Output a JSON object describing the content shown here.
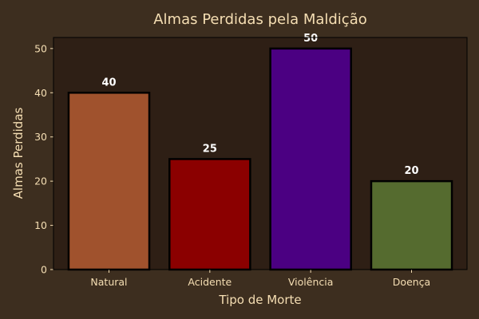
{
  "chart_data": {
    "type": "bar",
    "title": "Almas Perdidas pela Maldição",
    "xlabel": "Tipo de Morte",
    "ylabel": "Almas Perdidas",
    "categories": [
      "Natural",
      "Acidente",
      "Violência",
      "Doença"
    ],
    "values": [
      40,
      25,
      50,
      20
    ],
    "colors": [
      "#a0522d",
      "#8b0000",
      "#4b0082",
      "#556b2f"
    ],
    "ylim": [
      0,
      52.5
    ],
    "yticks": [
      0,
      10,
      20,
      30,
      40,
      50
    ],
    "grid": false
  },
  "colors": {
    "page_background": "#3d2e1f",
    "plot_background": "#2e1f15",
    "text": "#f5deb3",
    "data_label": "#ffffff",
    "bar_edge": "#000000"
  }
}
